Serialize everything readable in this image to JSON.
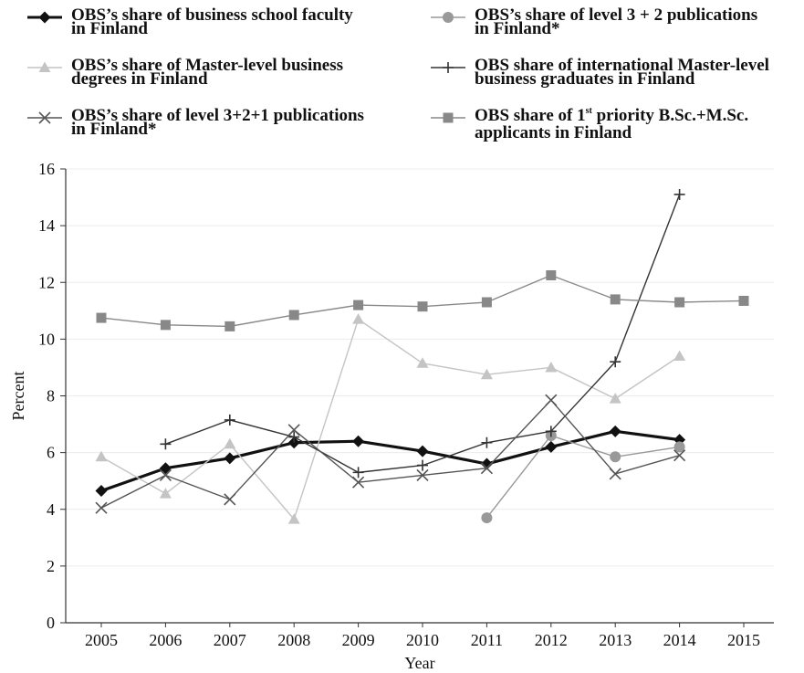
{
  "chart_data": {
    "type": "line",
    "title": "",
    "xlabel": "Year",
    "ylabel": "Percent",
    "ylim": [
      0,
      16
    ],
    "yticks": [
      "0",
      "2",
      "4",
      "6",
      "8",
      "10",
      "12",
      "14",
      "16"
    ],
    "categories": [
      "2005",
      "2006",
      "2007",
      "2008",
      "2009",
      "2010",
      "2011",
      "2012",
      "2013",
      "2014",
      "2015"
    ],
    "grid": "horizontal",
    "legend_position": "top",
    "series": [
      {
        "name": "OBS’s share of business school faculty in Finland",
        "legend_lines": [
          "OBS’s share of business school faculty",
          "in Finland"
        ],
        "marker": "diamond",
        "color": "#111111",
        "values": [
          4.65,
          5.45,
          5.8,
          6.35,
          6.4,
          6.05,
          5.6,
          6.2,
          6.75,
          6.45,
          null
        ]
      },
      {
        "name": "OBS’s share of level 3 + 2 publications in Finland*",
        "legend_lines": [
          "OBS’s share of level 3 + 2 publications",
          "in Finland*"
        ],
        "marker": "circle",
        "color": "#999999",
        "values": [
          null,
          null,
          null,
          null,
          null,
          null,
          3.7,
          6.6,
          5.85,
          6.2,
          null
        ]
      },
      {
        "name": "OBS’s share of Master-level business degrees in Finland",
        "legend_lines": [
          "OBS’s share of Master-level business",
          "degrees in Finland"
        ],
        "marker": "triangle",
        "color": "#c4c4c4",
        "values": [
          5.85,
          4.55,
          6.3,
          3.65,
          10.7,
          9.15,
          8.75,
          9.0,
          7.9,
          9.4,
          null
        ]
      },
      {
        "name": "OBS share of international Master-level business graduates in Finland",
        "legend_lines": [
          "OBS share of international Master-level",
          "business graduates in Finland"
        ],
        "marker": "plus",
        "color": "#333333",
        "values": [
          null,
          6.3,
          7.15,
          6.55,
          5.3,
          5.55,
          6.35,
          6.75,
          9.2,
          15.1,
          null
        ]
      },
      {
        "name": "OBS’s share of level 3+2+1 publications in Finland*",
        "legend_lines": [
          "OBS’s share of level 3+2+1 publications",
          "in Finland*"
        ],
        "marker": "x",
        "color": "#555555",
        "values": [
          4.05,
          5.2,
          4.35,
          6.8,
          4.95,
          5.2,
          5.45,
          7.85,
          5.25,
          5.9,
          null
        ]
      },
      {
        "name": "OBS share of 1st priority B.Sc.+M.Sc. applicants in Finland",
        "legend_lines": [
          "OBS share of 1",
          "st",
          " priority B.Sc.+M.Sc.",
          "applicants in Finland"
        ],
        "marker": "square",
        "color": "#888888",
        "values": [
          10.75,
          10.5,
          10.45,
          10.85,
          11.2,
          11.15,
          11.3,
          12.25,
          11.4,
          11.3,
          11.35
        ]
      }
    ]
  }
}
